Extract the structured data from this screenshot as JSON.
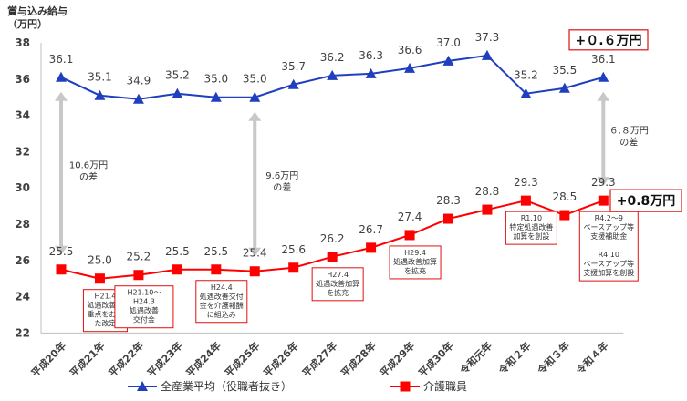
{
  "chart_data": {
    "type": "line",
    "ylabel_lines": [
      "賞与込み給与",
      "（万円）"
    ],
    "categories": [
      "平成20年",
      "平成21年",
      "平成22年",
      "平成23年",
      "平成24年",
      "平成25年",
      "平成26年",
      "平成27年",
      "平成28年",
      "平成29年",
      "平成30年",
      "令和元年",
      "令和２年",
      "令和３年",
      "令和４年"
    ],
    "ylim": [
      22,
      38
    ],
    "yticks": [
      22,
      24,
      26,
      28,
      30,
      32,
      34,
      36,
      38
    ],
    "grid": false,
    "legend_position": "bottom",
    "series": [
      {
        "name": "全産業平均（役職者抜き）",
        "color": "#1f3fbf",
        "marker": "triangle",
        "values": [
          36.1,
          35.1,
          34.9,
          35.2,
          35.0,
          35.0,
          35.7,
          36.2,
          36.3,
          36.6,
          37.0,
          37.3,
          35.2,
          35.5,
          36.1
        ]
      },
      {
        "name": "介護職員",
        "color": "#ff0000",
        "marker": "square",
        "values": [
          25.5,
          25.0,
          25.2,
          25.5,
          25.5,
          25.4,
          25.6,
          26.2,
          26.7,
          27.4,
          28.3,
          28.8,
          29.3,
          28.5,
          29.3
        ]
      }
    ],
    "gap_annotations": [
      {
        "index": 0,
        "lines": [
          "10.6万円",
          "の差"
        ]
      },
      {
        "index": 5,
        "lines": [
          "9.6万円",
          "の差"
        ]
      },
      {
        "index": 14,
        "lines": [
          "６.８万円",
          "の差"
        ]
      }
    ],
    "callouts": [
      {
        "series": 0,
        "text": "+０.６万円"
      },
      {
        "series": 1,
        "text": "+0.8万円"
      }
    ],
    "annotations": [
      {
        "index": 1,
        "lines": [
          "H21.4",
          "処遇改善に",
          "重点をおい",
          "た改定"
        ]
      },
      {
        "index": 2,
        "lines": [
          "H21.10～",
          "H24.3",
          "処遇改善",
          "交付金"
        ]
      },
      {
        "index": 4,
        "lines": [
          "H24.4",
          "処遇改善交付",
          "金を介護報酬",
          "に組込み"
        ]
      },
      {
        "index": 7,
        "lines": [
          "H27.4",
          "処遇改善加算",
          "を拡充"
        ]
      },
      {
        "index": 9,
        "lines": [
          "H29.4",
          "処遇改善加算",
          "を拡充"
        ]
      },
      {
        "index": 12,
        "lines": [
          "R1.10",
          "特定処遇改善",
          "加算を創設"
        ]
      },
      {
        "index": 14,
        "lines": [
          "R4.2～9",
          "ベースアップ等",
          "支援補助金",
          "",
          "R4.10",
          "ベースアップ等",
          "支援加算を創設"
        ]
      }
    ]
  }
}
